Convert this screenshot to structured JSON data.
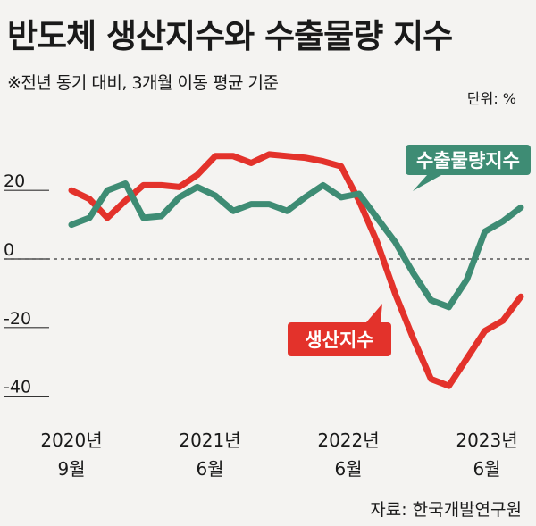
{
  "title": "반도체 생산지수와 수출물량 지수",
  "subtitle": "※전년 동기 대비, 3개월 이동 평균 기준",
  "unit": "단위: %",
  "source": "자료: 한국개발연구원",
  "chart_data": {
    "type": "line",
    "y_ticks": [
      "20",
      "0",
      "-20",
      "-40"
    ],
    "x_ticks": [
      {
        "line1": "2020년",
        "line2": "9월"
      },
      {
        "line1": "2021년",
        "line2": "6월"
      },
      {
        "line1": "2022년",
        "line2": "6월"
      },
      {
        "line1": "2023년",
        "line2": "6월"
      }
    ],
    "ylim": [
      -45,
      33
    ],
    "series": [
      {
        "name": "생산지수",
        "color": "#e3322b",
        "values": [
          20,
          17.5,
          12,
          17,
          21.5,
          21.5,
          21,
          24.5,
          30,
          30,
          28,
          30.5,
          30,
          29.5,
          28.5,
          27,
          17,
          5,
          -10,
          -23,
          -35,
          -37,
          -29,
          -21,
          -18,
          -11
        ]
      },
      {
        "name": "수출물량지수",
        "color": "#3e8c74",
        "values": [
          10,
          12,
          20,
          22,
          12,
          12.5,
          18,
          21,
          18.5,
          14,
          16,
          16,
          14,
          18,
          21.5,
          18,
          19,
          12,
          5,
          -4,
          -12,
          -14,
          -6,
          8,
          11,
          15
        ]
      }
    ]
  }
}
